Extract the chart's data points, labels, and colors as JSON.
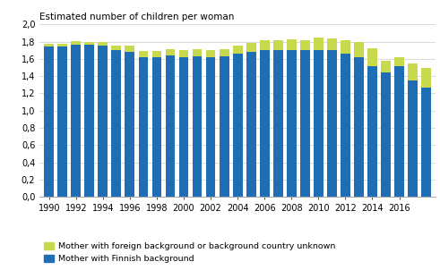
{
  "years": [
    1990,
    1991,
    1992,
    1993,
    1994,
    1995,
    1996,
    1997,
    1998,
    1999,
    2000,
    2001,
    2002,
    2003,
    2004,
    2005,
    2006,
    2007,
    2008,
    2009,
    2010,
    2011,
    2012,
    2013,
    2014,
    2015,
    2016,
    2017,
    2018
  ],
  "finnish_bg": [
    1.74,
    1.74,
    1.76,
    1.76,
    1.75,
    1.7,
    1.68,
    1.62,
    1.62,
    1.64,
    1.62,
    1.63,
    1.62,
    1.63,
    1.66,
    1.68,
    1.7,
    1.7,
    1.7,
    1.7,
    1.7,
    1.7,
    1.66,
    1.62,
    1.52,
    1.44,
    1.52,
    1.35,
    1.27
  ],
  "foreign_bg": [
    0.03,
    0.03,
    0.05,
    0.04,
    0.05,
    0.05,
    0.07,
    0.07,
    0.07,
    0.07,
    0.08,
    0.08,
    0.08,
    0.08,
    0.09,
    0.1,
    0.12,
    0.12,
    0.13,
    0.12,
    0.15,
    0.14,
    0.16,
    0.17,
    0.2,
    0.14,
    0.1,
    0.2,
    0.22
  ],
  "bar_color_finnish": "#1f6eb5",
  "bar_color_foreign": "#c8d94e",
  "title": "Estimated number of children per woman",
  "legend_foreign": "Mother with foreign background or background country unknown",
  "legend_finnish": "Mother with Finnish background",
  "ylim": [
    0,
    2.0
  ],
  "yticks": [
    0.0,
    0.2,
    0.4,
    0.6,
    0.8,
    1.0,
    1.2,
    1.4,
    1.6,
    1.8,
    2.0
  ],
  "ytick_labels": [
    "0,0",
    "0,2",
    "0,4",
    "0,6",
    "0,8",
    "1,0",
    "1,2",
    "1,4",
    "1,6",
    "1,8",
    "2,0"
  ],
  "xticks": [
    1990,
    1992,
    1994,
    1996,
    1998,
    2000,
    2002,
    2004,
    2006,
    2008,
    2010,
    2012,
    2014,
    2016
  ],
  "background_color": "#ffffff",
  "grid_color": "#cccccc"
}
